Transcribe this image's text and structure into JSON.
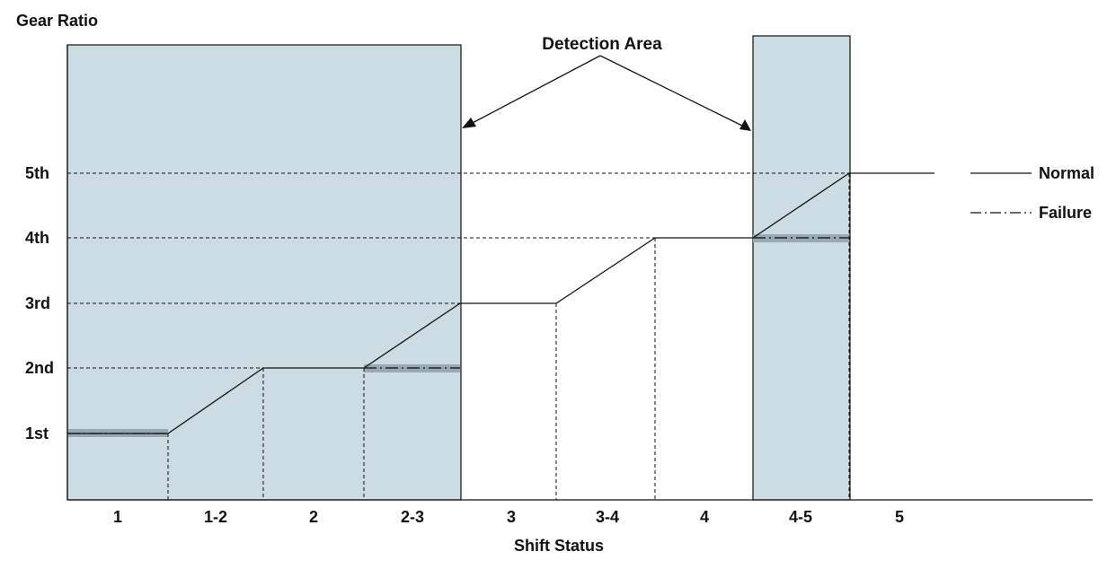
{
  "y_axis_title": "Gear Ratio",
  "x_axis_title": "Shift Status",
  "callout_label": "Detection Area",
  "y_levels": [
    "1st",
    "2nd",
    "3rd",
    "4th",
    "5th"
  ],
  "x_segments": [
    "1",
    "1-2",
    "2",
    "2-3",
    "3",
    "3-4",
    "4",
    "4-5",
    "5"
  ],
  "legend": {
    "normal": "Normal",
    "failure": "Failure"
  },
  "colors": {
    "detection_fill": "#cbdce2",
    "failure_band": "#97a9b1",
    "line": "#111111"
  }
}
